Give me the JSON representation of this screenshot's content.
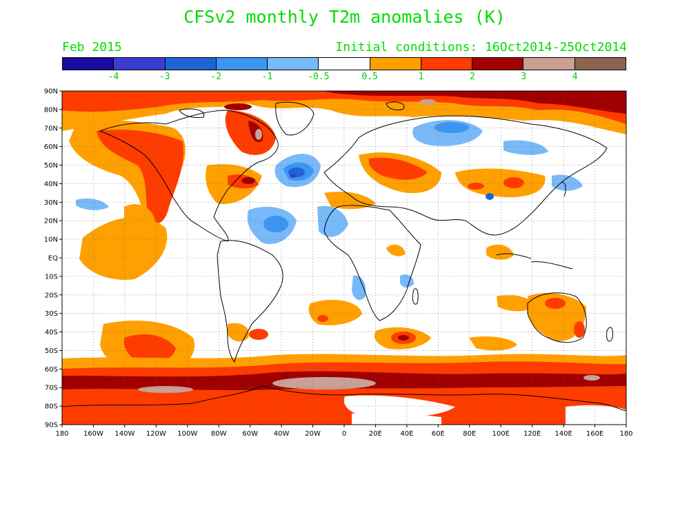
{
  "title": "CFSv2 monthly T2m anomalies (K)",
  "forecast_month": "Feb 2015",
  "initial_conditions": "Initial conditions: 16Oct2014-25Oct2014",
  "colorbar": {
    "colors": [
      "#1a0aa0",
      "#3c3cd2",
      "#1e64d2",
      "#3c96f0",
      "#78b9fa",
      "#ffffff",
      "#ffa000",
      "#ff3c00",
      "#a00000",
      "#c8a096",
      "#8c6450"
    ],
    "labels": [
      "-4",
      "-3",
      "-2",
      "-1",
      "-0.5",
      "0.5",
      "1",
      "2",
      "3",
      "4"
    ]
  },
  "map": {
    "lat_labels": [
      "90N",
      "80N",
      "70N",
      "60N",
      "50N",
      "40N",
      "30N",
      "20N",
      "10N",
      "EQ",
      "10S",
      "20S",
      "30S",
      "40S",
      "50S",
      "60S",
      "70S",
      "80S",
      "90S"
    ],
    "lon_labels": [
      "180",
      "160W",
      "140W",
      "120W",
      "100W",
      "80W",
      "60W",
      "40W",
      "20W",
      "0",
      "20E",
      "40E",
      "60E",
      "80E",
      "100E",
      "120E",
      "140E",
      "160E",
      "180"
    ]
  }
}
